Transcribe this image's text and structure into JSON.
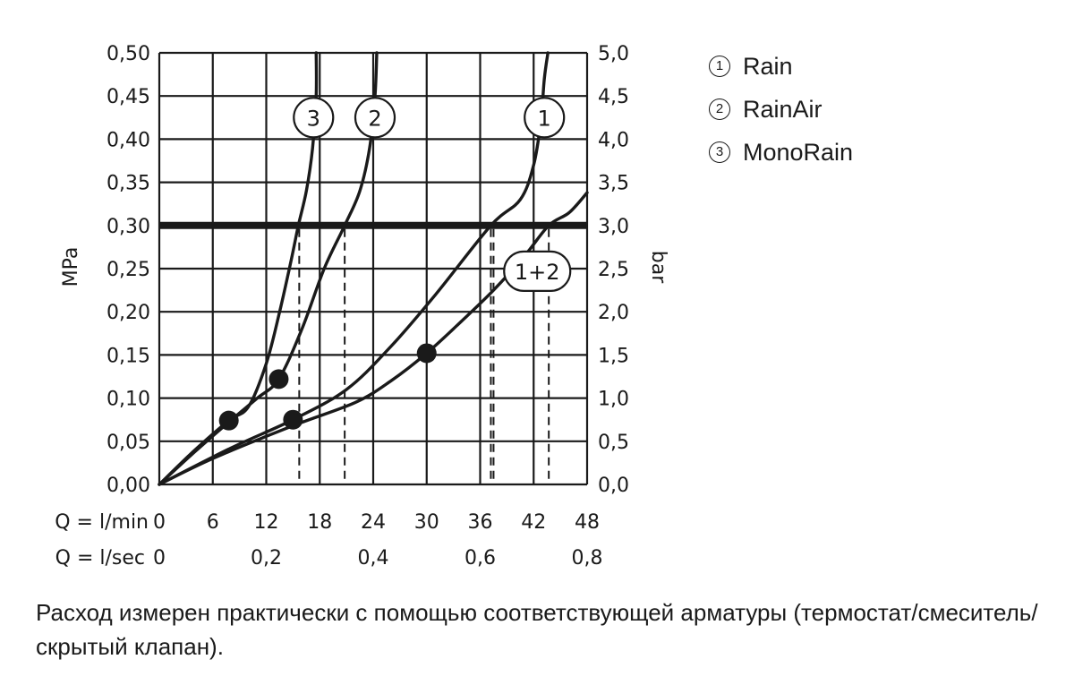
{
  "chart_data": {
    "type": "line",
    "ylabel_left": "MPa",
    "ylabel_right": "bar",
    "x_label_lmin": "Q = l/min",
    "x_label_lsec": "Q = l/sec",
    "x_ticks_lmin": [
      "0",
      "6",
      "12",
      "18",
      "24",
      "30",
      "36",
      "42",
      "48"
    ],
    "x_ticks_lsec": [
      "0",
      "0,2",
      "0,4",
      "0,6",
      "0,8"
    ],
    "x_ticks_lsec_values": [
      0,
      12,
      24,
      36,
      48
    ],
    "y_ticks_left": [
      "0,00",
      "0,05",
      "0,10",
      "0,15",
      "0,20",
      "0,25",
      "0,30",
      "0,35",
      "0,40",
      "0,45",
      "0,50"
    ],
    "y_ticks_right": [
      "0,0",
      "0,5",
      "1,0",
      "1,5",
      "2,0",
      "2,5",
      "3,0",
      "3,5",
      "4,0",
      "4,5",
      "5,0"
    ],
    "xlim": [
      0,
      48
    ],
    "ylim": [
      0,
      0.5
    ],
    "grid": true,
    "reference_line": 0.3,
    "series": [
      {
        "label": "3",
        "points": [
          [
            0,
            0
          ],
          [
            4,
            0.04
          ],
          [
            7.8,
            0.074
          ],
          [
            10,
            0.09
          ],
          [
            12,
            0.14
          ],
          [
            13.5,
            0.2
          ],
          [
            14.8,
            0.26
          ],
          [
            15.6,
            0.3
          ],
          [
            16.5,
            0.34
          ],
          [
            17.2,
            0.39
          ],
          [
            17.6,
            0.45
          ],
          [
            17.6,
            0.5
          ]
        ],
        "marker": [
          7.8,
          0.074
        ],
        "label_pos": [
          17.3,
          0.425
        ]
      },
      {
        "label": "2",
        "points": [
          [
            0,
            0
          ],
          [
            4,
            0.038
          ],
          [
            8,
            0.074
          ],
          [
            11,
            0.1
          ],
          [
            13.4,
            0.122
          ],
          [
            16,
            0.18
          ],
          [
            18.5,
            0.25
          ],
          [
            20.8,
            0.3
          ],
          [
            22.5,
            0.34
          ],
          [
            23.6,
            0.39
          ],
          [
            24.2,
            0.45
          ],
          [
            24.4,
            0.5
          ]
        ],
        "marker": [
          13.4,
          0.122
        ],
        "label_pos": [
          24.2,
          0.425
        ]
      },
      {
        "label": "1",
        "points": [
          [
            0,
            0
          ],
          [
            8,
            0.042
          ],
          [
            15,
            0.075
          ],
          [
            21,
            0.11
          ],
          [
            26,
            0.16
          ],
          [
            31,
            0.22
          ],
          [
            37.2,
            0.3
          ],
          [
            40.5,
            0.33
          ],
          [
            42,
            0.37
          ],
          [
            42.8,
            0.42
          ],
          [
            43.2,
            0.47
          ],
          [
            43.6,
            0.5
          ]
        ],
        "marker": [
          15,
          0.075
        ],
        "label_pos": [
          43.2,
          0.425
        ]
      },
      {
        "label": "1+2",
        "points": [
          [
            0,
            0
          ],
          [
            6,
            0.03
          ],
          [
            15,
            0.068
          ],
          [
            22,
            0.095
          ],
          [
            26,
            0.12
          ],
          [
            30,
            0.152
          ],
          [
            34,
            0.19
          ],
          [
            37.5,
            0.225
          ],
          [
            41,
            0.265
          ],
          [
            43.7,
            0.3
          ],
          [
            46,
            0.315
          ],
          [
            48,
            0.338
          ]
        ],
        "marker": [
          30,
          0.152
        ],
        "label_pos": [
          42.4,
          0.247
        ]
      }
    ],
    "dashed_x": [
      15.7,
      20.8,
      37.2,
      37.5,
      43.7
    ]
  },
  "legend": [
    {
      "num": "1",
      "name": "Rain"
    },
    {
      "num": "2",
      "name": "RainAir"
    },
    {
      "num": "3",
      "name": "MonoRain"
    }
  ],
  "note": "Расход измерен практически с помощью соответствующей арматуры (термостат/смеситель/скрытый клапан)."
}
